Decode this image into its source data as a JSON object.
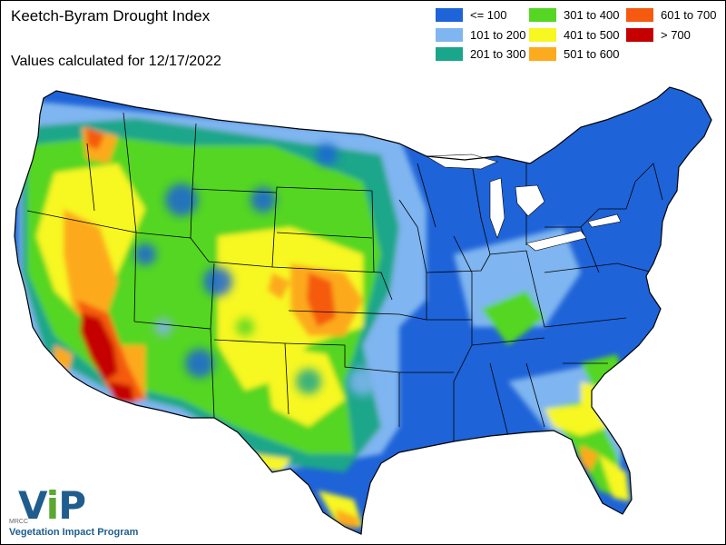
{
  "header": {
    "title": "Keetch-Byram Drought Index",
    "subtitle": "Values calculated for 12/17/2022"
  },
  "legend": [
    {
      "label": "<= 100",
      "color": "#1e63d8"
    },
    {
      "label": "101 to 200",
      "color": "#7fb5f0"
    },
    {
      "label": "201 to 300",
      "color": "#1aa68a"
    },
    {
      "label": "301 to 400",
      "color": "#55d622"
    },
    {
      "label": "401 to 500",
      "color": "#f7f722"
    },
    {
      "label": "501 to 600",
      "color": "#fcaa1e"
    },
    {
      "label": "601 to 700",
      "color": "#f55a10"
    },
    {
      "label": "> 700",
      "color": "#c40000"
    }
  ],
  "logo": {
    "mark_v": "V",
    "mark_i": "i",
    "mark_p": "P",
    "org": "MRCC",
    "program": "Vegetation Impact Program"
  }
}
